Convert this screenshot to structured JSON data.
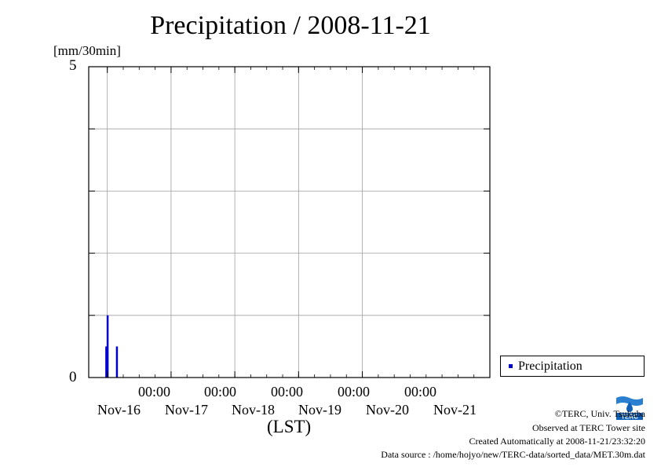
{
  "title": "Precipitation / 2008-11-21",
  "y_unit_label": "[mm/30min]",
  "x_axis_label": "(LST)",
  "legend": {
    "label": "Precipitation"
  },
  "credits": {
    "copyright": "©TERC, Univ. Tsukuba",
    "observed": "Observed at TERC Tower site",
    "created": "Created Automatically at 2008-11-21/23:32:20",
    "source": "Data source : /home/hojyo/new/TERC-data/sorted_data/MET.30m.dat"
  },
  "logo_text": "TERC",
  "colors": {
    "series": "#0000cc",
    "grid": "#a0a0a0"
  },
  "chart_data": {
    "type": "bar",
    "title": "Precipitation / 2008-11-21",
    "ylabel": "[mm/30min]",
    "xlabel": "(LST)",
    "ylim": [
      0,
      5
    ],
    "y_ticks": [
      "0",
      "5"
    ],
    "x_time_labels": [
      "00:00",
      "00:00",
      "00:00",
      "00:00",
      "00:00"
    ],
    "x_date_labels": [
      "Nov-16",
      "Nov-17",
      "Nov-18",
      "Nov-19",
      "Nov-20",
      "Nov-21"
    ],
    "x_range": [
      "2008-11-15 17:00",
      "2008-11-21 24:00"
    ],
    "grid": true,
    "legend_position": "bottom-right, outside plot",
    "series": [
      {
        "name": "Precipitation",
        "color": "#0000cc",
        "points": [
          {
            "time": "2008-11-15 23:30",
            "value": 0.5
          },
          {
            "time": "2008-11-16 00:00",
            "value": 1.0
          },
          {
            "time": "2008-11-16 03:30",
            "value": 0.5
          }
        ]
      }
    ]
  }
}
